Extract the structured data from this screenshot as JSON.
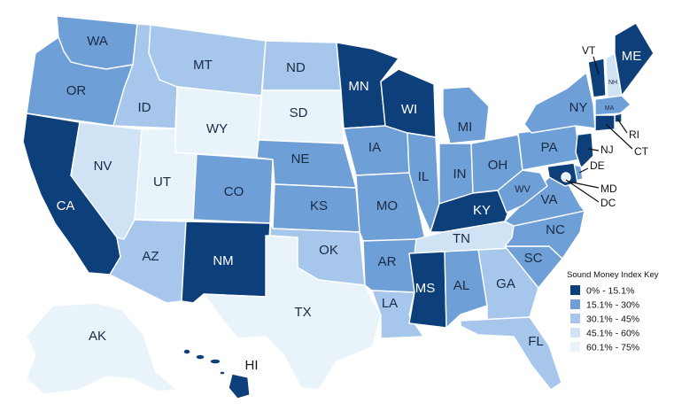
{
  "legend": {
    "title": "Sound Money Index Key",
    "items": [
      {
        "label": "0% - 15.1%",
        "color": "#0d3f7a"
      },
      {
        "label": "15.1% - 30%",
        "color": "#6e9fd6"
      },
      {
        "label": "30.1% - 45%",
        "color": "#a6c7eb"
      },
      {
        "label": "45.1% - 60%",
        "color": "#cfe3f5"
      },
      {
        "label": "60.1% - 75%",
        "color": "#e8f3fa"
      }
    ]
  },
  "states": {
    "WA": {
      "label": "WA",
      "tier": 1
    },
    "OR": {
      "label": "OR",
      "tier": 1
    },
    "CA": {
      "label": "CA",
      "tier": 0
    },
    "ID": {
      "label": "ID",
      "tier": 2
    },
    "NV": {
      "label": "NV",
      "tier": 3
    },
    "MT": {
      "label": "MT",
      "tier": 2
    },
    "WY": {
      "label": "WY",
      "tier": 4
    },
    "UT": {
      "label": "UT",
      "tier": 4
    },
    "AZ": {
      "label": "AZ",
      "tier": 2
    },
    "CO": {
      "label": "CO",
      "tier": 1
    },
    "NM": {
      "label": "NM",
      "tier": 0
    },
    "ND": {
      "label": "ND",
      "tier": 2
    },
    "SD": {
      "label": "SD",
      "tier": 4
    },
    "NE": {
      "label": "NE",
      "tier": 1
    },
    "KS": {
      "label": "KS",
      "tier": 1
    },
    "OK": {
      "label": "OK",
      "tier": 2
    },
    "TX": {
      "label": "TX",
      "tier": 4
    },
    "MN": {
      "label": "MN",
      "tier": 0
    },
    "IA": {
      "label": "IA",
      "tier": 1
    },
    "MO": {
      "label": "MO",
      "tier": 1
    },
    "AR": {
      "label": "AR",
      "tier": 1
    },
    "LA": {
      "label": "LA",
      "tier": 2
    },
    "WI": {
      "label": "WI",
      "tier": 0
    },
    "IL": {
      "label": "IL",
      "tier": 1
    },
    "MI": {
      "label": "MI",
      "tier": 1
    },
    "IN": {
      "label": "IN",
      "tier": 1
    },
    "OH": {
      "label": "OH",
      "tier": 1
    },
    "KY": {
      "label": "KY",
      "tier": 0
    },
    "TN": {
      "label": "TN",
      "tier": 3
    },
    "MS": {
      "label": "MS",
      "tier": 0
    },
    "AL": {
      "label": "AL",
      "tier": 1
    },
    "GA": {
      "label": "GA",
      "tier": 2
    },
    "FL": {
      "label": "FL",
      "tier": 2
    },
    "SC": {
      "label": "SC",
      "tier": 1
    },
    "NC": {
      "label": "NC",
      "tier": 1
    },
    "VA": {
      "label": "VA",
      "tier": 1
    },
    "WV": {
      "label": "WV",
      "tier": 1
    },
    "PA": {
      "label": "PA",
      "tier": 1
    },
    "NY": {
      "label": "NY",
      "tier": 1
    },
    "VT": {
      "label": "VT",
      "tier": 0
    },
    "NH": {
      "label": "NH",
      "tier": 3
    },
    "ME": {
      "label": "ME",
      "tier": 0
    },
    "MA": {
      "label": "MA",
      "tier": 1
    },
    "RI": {
      "label": "RI",
      "tier": 0
    },
    "CT": {
      "label": "CT",
      "tier": 0
    },
    "NJ": {
      "label": "NJ",
      "tier": 0
    },
    "DE": {
      "label": "DE",
      "tier": 1
    },
    "MD": {
      "label": "MD",
      "tier": 0
    },
    "DC": {
      "label": "DC",
      "tier": 4
    },
    "AK": {
      "label": "AK",
      "tier": 4
    },
    "HI": {
      "label": "HI",
      "tier": 0
    }
  }
}
